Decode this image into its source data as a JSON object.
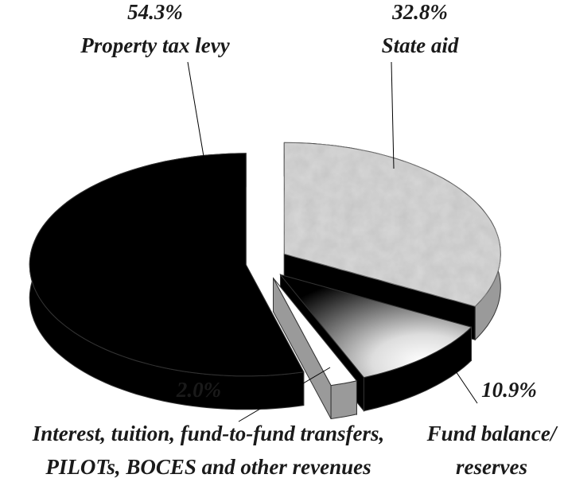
{
  "chart_data": {
    "type": "pie",
    "categories": [
      [
        "Property tax levy"
      ],
      [
        "State aid"
      ],
      [
        "Fund balance/",
        "reserves"
      ],
      [
        "Interest, tuition, fund-to-fund transfers,",
        "PILOTs, BOCES and other revenues"
      ]
    ],
    "values": [
      54.3,
      32.8,
      10.9,
      2.0
    ],
    "value_labels": [
      "54.3%",
      "32.8%",
      "10.9%",
      "2.0%"
    ],
    "colors": [
      "#000000",
      "#d8d8d8",
      "#000000",
      "#ffffff"
    ],
    "start_slice": 1
  }
}
